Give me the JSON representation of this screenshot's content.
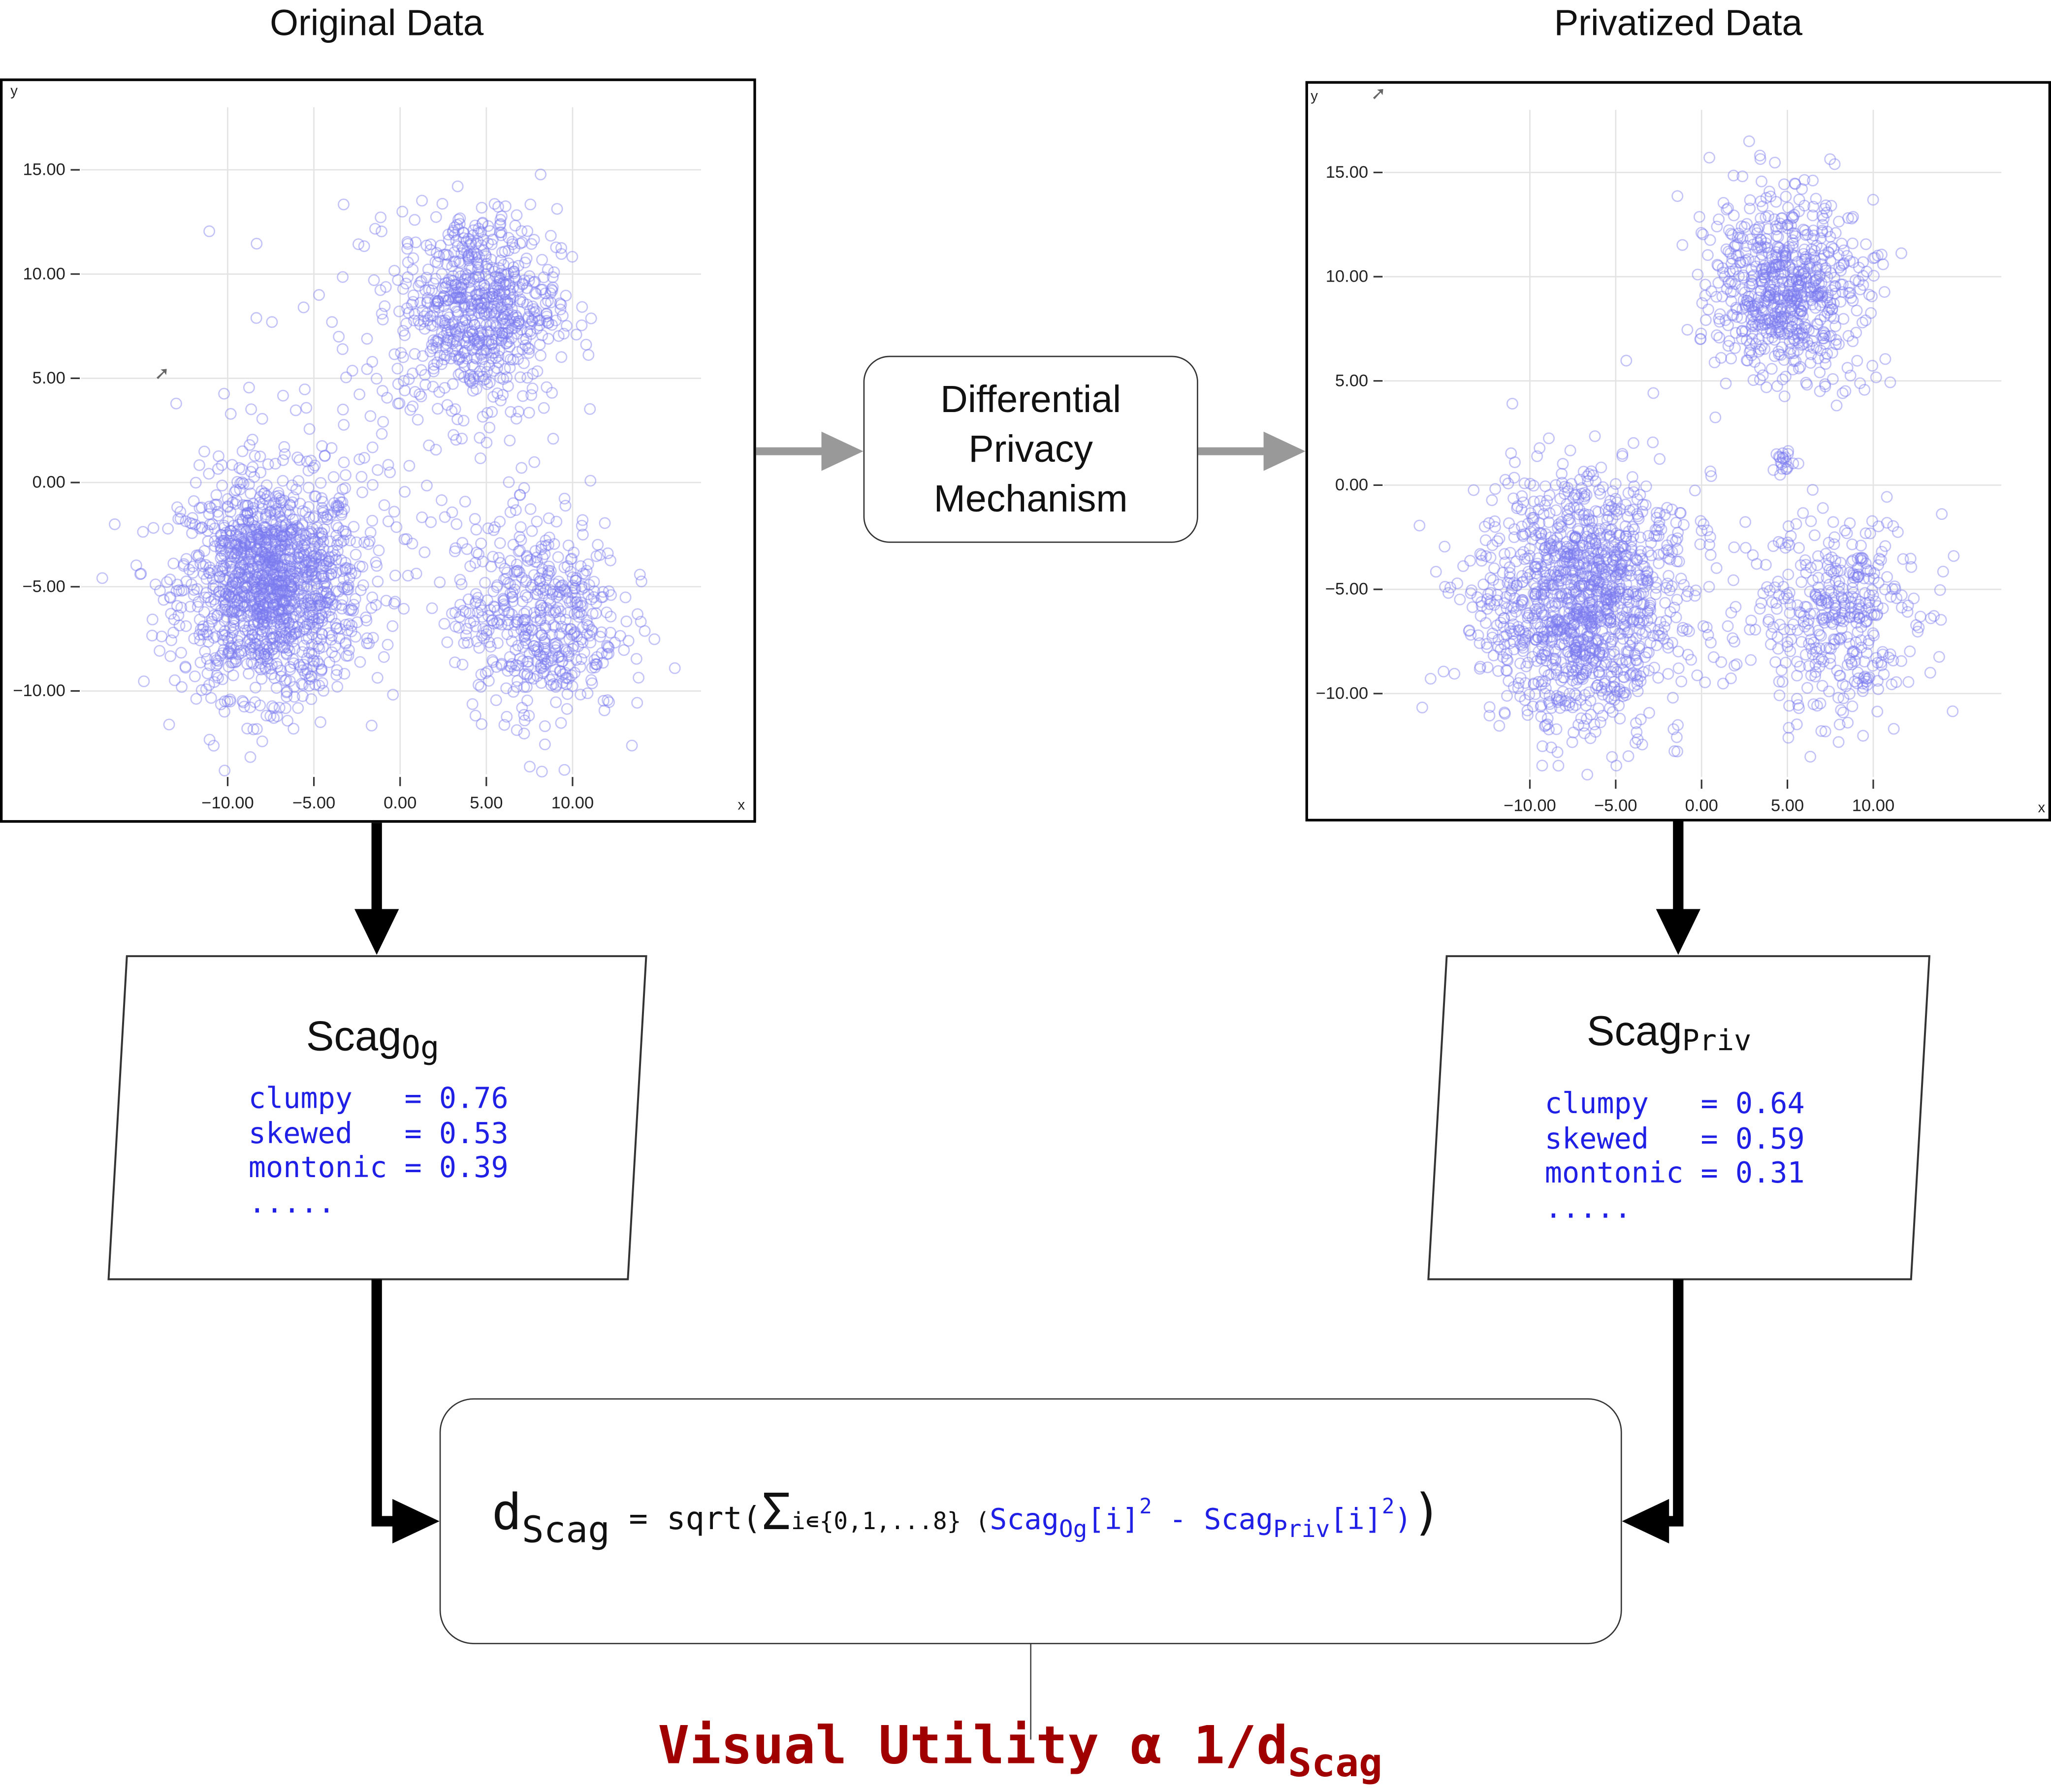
{
  "headings": {
    "original": "Original Data",
    "privatized": "Privatized Data"
  },
  "mechanism": {
    "line1": "Differential",
    "line2": "Privacy",
    "line3": "Mechanism"
  },
  "scag_og": {
    "title": "Scag",
    "subscript": "Og",
    "metrics": "clumpy   = 0.76\nskewed   = 0.53\nmontonic = 0.39\n....."
  },
  "scag_priv": {
    "title": "Scag",
    "subscript": "Priv",
    "metrics": "clumpy   = 0.64\nskewed   = 0.59\nmontonic = 0.31\n....."
  },
  "formula": {
    "lhs": "d",
    "lhs_sub": "Scag",
    "equals": " = sqrt(",
    "sigma": "Σ",
    "sigma_index": "i∊{0,1,...8}",
    "open": " (",
    "term1": "Scag",
    "term1_sub": "Og",
    "term1_idx": "[i]",
    "sq1": "2",
    "minus": " - ",
    "term2": "Scag",
    "term2_sub": "Priv",
    "term2_idx": "[i]",
    "sq2": "2",
    "close_inner": ")",
    "close": ")"
  },
  "utility": {
    "text": "Visual Utility α 1/d",
    "sub": "Scag"
  },
  "colors": {
    "point": "#7b7bf0",
    "metric_text": "#1f1fe6",
    "utility_text": "#a00000",
    "arrow_gray": "#999999",
    "arrow_black": "#000000"
  },
  "chart_data": [
    {
      "type": "scatter",
      "title": "",
      "xlabel": "x",
      "ylabel": "y",
      "xlim": [
        -18.5,
        17
      ],
      "ylim": [
        -14,
        17.5
      ],
      "xticks": [
        -10,
        -5,
        0,
        5,
        10
      ],
      "yticks": [
        -10,
        -5,
        0,
        5,
        10,
        15
      ],
      "xtick_labels": [
        "−10.00",
        "−5.00",
        "0.00",
        "5.00",
        "10.00"
      ],
      "ytick_labels": [
        "−10.00",
        "−5.00",
        "0.00",
        "5.00",
        "10.00",
        "15.00"
      ],
      "grid": true,
      "marker": "hollow-circle",
      "clusters": [
        {
          "center": [
            -7.5,
            -5.0
          ],
          "spread": 2.6,
          "count": 1400
        },
        {
          "center": [
            4.5,
            8.5
          ],
          "spread": 2.3,
          "count": 700
        },
        {
          "center": [
            8.0,
            -6.5
          ],
          "spread": 2.4,
          "count": 500
        },
        {
          "center": [
            -1.0,
            1.0
          ],
          "spread": 5.0,
          "count": 120
        }
      ]
    },
    {
      "type": "scatter",
      "title": "",
      "xlabel": "x",
      "ylabel": "y",
      "xlim": [
        -18.5,
        17
      ],
      "ylim": [
        -14,
        17.5
      ],
      "xticks": [
        -10,
        -5,
        0,
        5,
        10
      ],
      "yticks": [
        -10,
        -5,
        0,
        5,
        10,
        15
      ],
      "xtick_labels": [
        "−10.00",
        "−5.00",
        "0.00",
        "5.00",
        "10.00"
      ],
      "ytick_labels": [
        "−10.00",
        "−5.00",
        "0.00",
        "5.00",
        "10.00",
        "15.00"
      ],
      "grid": true,
      "marker": "hollow-circle",
      "clusters": [
        {
          "center": [
            -7.0,
            -5.5
          ],
          "spread": 3.0,
          "count": 1300
        },
        {
          "center": [
            5.0,
            9.5
          ],
          "spread": 2.2,
          "count": 700
        },
        {
          "center": [
            8.0,
            -6.5
          ],
          "spread": 2.4,
          "count": 400
        },
        {
          "center": [
            4.8,
            1.2
          ],
          "spread": 0.3,
          "count": 20
        }
      ]
    }
  ]
}
